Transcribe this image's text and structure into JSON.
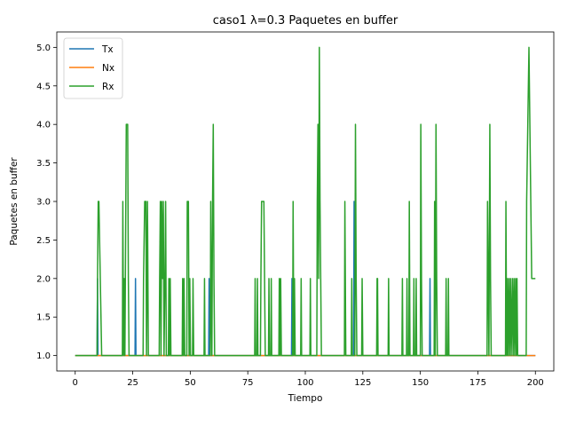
{
  "chart_data": {
    "type": "line",
    "title": "caso1 λ=0.3 Paquetes en buffer",
    "xlabel": "Tiempo",
    "ylabel": "Paquetes en buffer",
    "xlim": [
      -8,
      208
    ],
    "ylim": [
      0.8,
      5.2
    ],
    "xticks": [
      0,
      25,
      50,
      75,
      100,
      125,
      150,
      175,
      200
    ],
    "yticks": [
      1.0,
      1.5,
      2.0,
      2.5,
      3.0,
      3.5,
      4.0,
      4.5,
      5.0
    ],
    "xtick_labels": [
      "0",
      "25",
      "50",
      "75",
      "100",
      "125",
      "150",
      "175",
      "200"
    ],
    "ytick_labels": [
      "1.0",
      "1.5",
      "2.0",
      "2.5",
      "3.0",
      "3.5",
      "4.0",
      "4.5",
      "5.0"
    ],
    "grid": false,
    "legend_position": "top-left",
    "series": [
      {
        "name": "Tx",
        "color": "#1f77b4",
        "points": [
          [
            0,
            1
          ],
          [
            9.5,
            1
          ],
          [
            9.7,
            2
          ],
          [
            9.9,
            1
          ],
          [
            26,
            1
          ],
          [
            26.2,
            2
          ],
          [
            26.4,
            1
          ],
          [
            58,
            1
          ],
          [
            58.2,
            2
          ],
          [
            58.4,
            1
          ],
          [
            94,
            1
          ],
          [
            94.2,
            2
          ],
          [
            94.4,
            1
          ],
          [
            121,
            1
          ],
          [
            121.2,
            3
          ],
          [
            121.4,
            1
          ],
          [
            154,
            1
          ],
          [
            154.2,
            2
          ],
          [
            154.4,
            1
          ],
          [
            200,
            1
          ]
        ]
      },
      {
        "name": "Nx",
        "color": "#ff7f0e",
        "points": [
          [
            0,
            1
          ],
          [
            200,
            1
          ]
        ]
      },
      {
        "name": "Rx",
        "color": "#2ca02c",
        "points": [
          [
            0,
            1
          ],
          [
            9.5,
            1
          ],
          [
            9.7,
            2
          ],
          [
            10,
            3
          ],
          [
            10.3,
            3
          ],
          [
            11.5,
            1
          ],
          [
            20.5,
            1
          ],
          [
            20.7,
            3
          ],
          [
            21,
            1
          ],
          [
            21.3,
            2
          ],
          [
            21.6,
            1
          ],
          [
            22.2,
            4
          ],
          [
            22.8,
            4
          ],
          [
            23.1,
            2
          ],
          [
            23.4,
            1
          ],
          [
            29.5,
            1
          ],
          [
            29.7,
            2
          ],
          [
            30.2,
            3
          ],
          [
            30.7,
            3
          ],
          [
            31,
            1
          ],
          [
            31.4,
            3
          ],
          [
            31.8,
            1
          ],
          [
            36.5,
            1
          ],
          [
            36.7,
            2
          ],
          [
            37,
            3
          ],
          [
            37.3,
            1
          ],
          [
            37.6,
            3
          ],
          [
            38,
            2
          ],
          [
            38.3,
            3
          ],
          [
            38.6,
            1
          ],
          [
            39,
            2
          ],
          [
            39.3,
            3
          ],
          [
            39.6,
            1
          ],
          [
            40.5,
            1
          ],
          [
            40.7,
            2
          ],
          [
            41,
            1
          ],
          [
            41.3,
            2
          ],
          [
            41.6,
            1
          ],
          [
            46.5,
            1
          ],
          [
            46.7,
            2
          ],
          [
            47,
            1
          ],
          [
            47.3,
            2
          ],
          [
            47.6,
            1
          ],
          [
            48.5,
            1
          ],
          [
            48.7,
            3
          ],
          [
            49.2,
            3
          ],
          [
            49.5,
            1
          ],
          [
            49.8,
            2
          ],
          [
            50.1,
            1
          ],
          [
            51,
            1
          ],
          [
            51.2,
            2
          ],
          [
            51.5,
            1
          ],
          [
            56,
            1
          ],
          [
            56.2,
            2
          ],
          [
            56.4,
            1
          ],
          [
            58.7,
            1
          ],
          [
            58.9,
            3
          ],
          [
            59.1,
            2
          ],
          [
            59.4,
            1
          ],
          [
            59.7,
            3
          ],
          [
            60,
            4
          ],
          [
            60.3,
            2
          ],
          [
            60.6,
            1
          ],
          [
            78,
            1
          ],
          [
            78.2,
            2
          ],
          [
            78.4,
            1
          ],
          [
            79,
            1
          ],
          [
            79.2,
            2
          ],
          [
            79.4,
            1
          ],
          [
            80.5,
            1
          ],
          [
            80.7,
            2
          ],
          [
            81,
            3
          ],
          [
            82,
            3
          ],
          [
            82.3,
            2
          ],
          [
            82.6,
            1
          ],
          [
            84,
            1
          ],
          [
            84.2,
            2
          ],
          [
            84.4,
            1
          ],
          [
            85,
            1
          ],
          [
            85.2,
            2
          ],
          [
            85.4,
            1
          ],
          [
            88.5,
            1
          ],
          [
            88.7,
            2
          ],
          [
            89,
            1
          ],
          [
            89.3,
            2
          ],
          [
            89.6,
            1
          ],
          [
            94.5,
            1
          ],
          [
            94.7,
            3
          ],
          [
            95,
            1
          ],
          [
            95.3,
            2
          ],
          [
            95.6,
            1
          ],
          [
            98,
            1
          ],
          [
            98.2,
            2
          ],
          [
            98.4,
            1
          ],
          [
            102,
            1
          ],
          [
            102.2,
            2
          ],
          [
            102.4,
            1
          ],
          [
            105,
            1
          ],
          [
            105.2,
            3
          ],
          [
            105.5,
            4
          ],
          [
            105.8,
            2
          ],
          [
            106.1,
            5
          ],
          [
            106.4,
            3
          ],
          [
            106.7,
            2
          ],
          [
            107,
            1
          ],
          [
            117,
            1
          ],
          [
            117.2,
            3
          ],
          [
            117.4,
            2
          ],
          [
            117.6,
            1
          ],
          [
            120,
            1
          ],
          [
            120.2,
            2
          ],
          [
            120.4,
            1
          ],
          [
            121.5,
            1
          ],
          [
            121.8,
            4
          ],
          [
            122.1,
            2
          ],
          [
            122.4,
            1
          ],
          [
            124.5,
            1
          ],
          [
            124.7,
            2
          ],
          [
            125,
            1
          ],
          [
            131,
            1
          ],
          [
            131.2,
            2
          ],
          [
            131.4,
            2
          ],
          [
            131.6,
            1
          ],
          [
            136,
            1
          ],
          [
            136.2,
            2
          ],
          [
            136.4,
            1
          ],
          [
            142,
            1
          ],
          [
            142.2,
            2
          ],
          [
            142.4,
            1
          ],
          [
            144,
            1
          ],
          [
            144.2,
            2
          ],
          [
            144.4,
            1
          ],
          [
            145,
            1
          ],
          [
            145.2,
            3
          ],
          [
            145.5,
            1
          ],
          [
            147,
            1
          ],
          [
            147.2,
            2
          ],
          [
            147.4,
            1
          ],
          [
            148,
            1
          ],
          [
            148.2,
            2
          ],
          [
            148.4,
            1
          ],
          [
            150,
            1
          ],
          [
            150.2,
            4
          ],
          [
            150.5,
            2
          ],
          [
            150.8,
            1
          ],
          [
            156,
            1
          ],
          [
            156.2,
            3
          ],
          [
            156.5,
            1
          ],
          [
            156.8,
            4
          ],
          [
            157.1,
            2
          ],
          [
            157.4,
            1
          ],
          [
            161,
            1
          ],
          [
            161.2,
            2
          ],
          [
            161.4,
            1
          ],
          [
            162,
            1
          ],
          [
            162.2,
            2
          ],
          [
            162.4,
            1
          ],
          [
            179,
            1
          ],
          [
            179.2,
            3
          ],
          [
            179.5,
            2
          ],
          [
            179.8,
            1
          ],
          [
            180.2,
            4
          ],
          [
            180.5,
            2
          ],
          [
            180.8,
            1
          ],
          [
            187,
            1
          ],
          [
            187.2,
            3
          ],
          [
            187.5,
            1
          ],
          [
            187.8,
            2
          ],
          [
            188.1,
            1
          ],
          [
            188.5,
            2
          ],
          [
            188.8,
            1
          ],
          [
            189.2,
            2
          ],
          [
            189.5,
            1
          ],
          [
            190,
            2
          ],
          [
            190.3,
            1
          ],
          [
            190.7,
            2
          ],
          [
            191,
            1
          ],
          [
            191.4,
            2
          ],
          [
            191.7,
            1
          ],
          [
            192,
            2
          ],
          [
            192.3,
            1
          ],
          [
            196,
            1
          ],
          [
            196.2,
            3
          ],
          [
            196.7,
            4
          ],
          [
            197.2,
            5
          ],
          [
            197.6,
            4
          ],
          [
            198,
            3
          ],
          [
            198.4,
            2
          ],
          [
            200,
            2
          ]
        ]
      }
    ]
  }
}
